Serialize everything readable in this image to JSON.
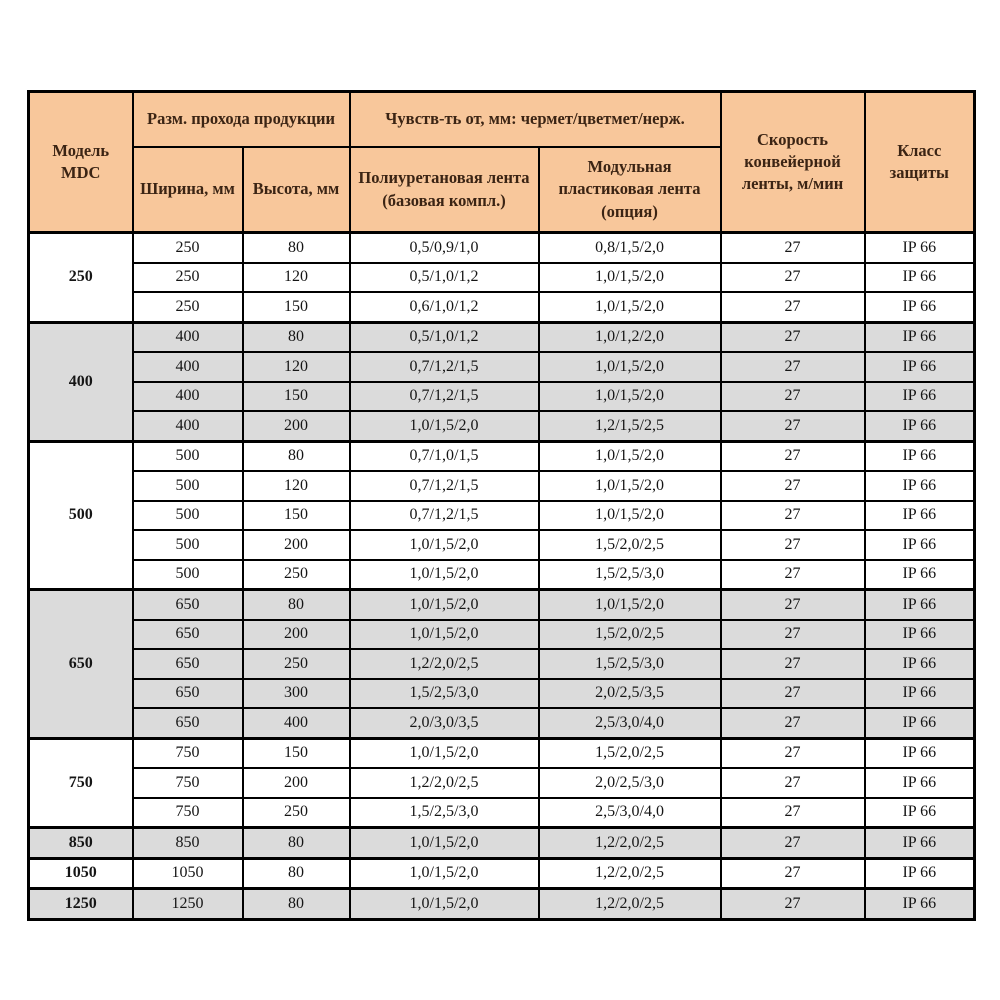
{
  "header": {
    "model": "Модель MDC",
    "pass_size": "Разм. прохода продукции",
    "width_col": "Ширина, мм",
    "height_col": "Высота, мм",
    "sensitivity": "Чувств-ть от, мм: чермет/цветмет/нерж.",
    "belt_pu": "Полиуретановая лента (базовая компл.)",
    "belt_modular": "Модульная пластиковая лента (опция)",
    "speed": "Скорость конвейерной ленты, м/мин",
    "protection": "Класс защиты"
  },
  "colors": {
    "header_bg": "#f8c79b",
    "header_text": "#3b2414",
    "row_gray": "#dbdbdb",
    "row_white": "#ffffff",
    "border": "#000000"
  },
  "groups": [
    {
      "model": "250",
      "shade": "white",
      "rows": [
        {
          "width": "250",
          "height": "80",
          "pu": "0,5/0,9/1,0",
          "modular": "0,8/1,5/2,0",
          "speed": "27",
          "protection": "IP 66"
        },
        {
          "width": "250",
          "height": "120",
          "pu": "0,5/1,0/1,2",
          "modular": "1,0/1,5/2,0",
          "speed": "27",
          "protection": "IP 66"
        },
        {
          "width": "250",
          "height": "150",
          "pu": "0,6/1,0/1,2",
          "modular": "1,0/1,5/2,0",
          "speed": "27",
          "protection": "IP 66"
        }
      ]
    },
    {
      "model": "400",
      "shade": "gray",
      "rows": [
        {
          "width": "400",
          "height": "80",
          "pu": "0,5/1,0/1,2",
          "modular": "1,0/1,2/2,0",
          "speed": "27",
          "protection": "IP 66"
        },
        {
          "width": "400",
          "height": "120",
          "pu": "0,7/1,2/1,5",
          "modular": "1,0/1,5/2,0",
          "speed": "27",
          "protection": "IP 66"
        },
        {
          "width": "400",
          "height": "150",
          "pu": "0,7/1,2/1,5",
          "modular": "1,0/1,5/2,0",
          "speed": "27",
          "protection": "IP 66"
        },
        {
          "width": "400",
          "height": "200",
          "pu": "1,0/1,5/2,0",
          "modular": "1,2/1,5/2,5",
          "speed": "27",
          "protection": "IP 66"
        }
      ]
    },
    {
      "model": "500",
      "shade": "white",
      "rows": [
        {
          "width": "500",
          "height": "80",
          "pu": "0,7/1,0/1,5",
          "modular": "1,0/1,5/2,0",
          "speed": "27",
          "protection": "IP 66"
        },
        {
          "width": "500",
          "height": "120",
          "pu": "0,7/1,2/1,5",
          "modular": "1,0/1,5/2,0",
          "speed": "27",
          "protection": "IP 66"
        },
        {
          "width": "500",
          "height": "150",
          "pu": "0,7/1,2/1,5",
          "modular": "1,0/1,5/2,0",
          "speed": "27",
          "protection": "IP 66"
        },
        {
          "width": "500",
          "height": "200",
          "pu": "1,0/1,5/2,0",
          "modular": "1,5/2,0/2,5",
          "speed": "27",
          "protection": "IP 66"
        },
        {
          "width": "500",
          "height": "250",
          "pu": "1,0/1,5/2,0",
          "modular": "1,5/2,5/3,0",
          "speed": "27",
          "protection": "IP 66"
        }
      ]
    },
    {
      "model": "650",
      "shade": "gray",
      "rows": [
        {
          "width": "650",
          "height": "80",
          "pu": "1,0/1,5/2,0",
          "modular": "1,0/1,5/2,0",
          "speed": "27",
          "protection": "IP 66"
        },
        {
          "width": "650",
          "height": "200",
          "pu": "1,0/1,5/2,0",
          "modular": "1,5/2,0/2,5",
          "speed": "27",
          "protection": "IP 66"
        },
        {
          "width": "650",
          "height": "250",
          "pu": "1,2/2,0/2,5",
          "modular": "1,5/2,5/3,0",
          "speed": "27",
          "protection": "IP 66"
        },
        {
          "width": "650",
          "height": "300",
          "pu": "1,5/2,5/3,0",
          "modular": "2,0/2,5/3,5",
          "speed": "27",
          "protection": "IP 66"
        },
        {
          "width": "650",
          "height": "400",
          "pu": "2,0/3,0/3,5",
          "modular": "2,5/3,0/4,0",
          "speed": "27",
          "protection": "IP 66"
        }
      ]
    },
    {
      "model": "750",
      "shade": "white",
      "rows": [
        {
          "width": "750",
          "height": "150",
          "pu": "1,0/1,5/2,0",
          "modular": "1,5/2,0/2,5",
          "speed": "27",
          "protection": "IP 66"
        },
        {
          "width": "750",
          "height": "200",
          "pu": "1,2/2,0/2,5",
          "modular": "2,0/2,5/3,0",
          "speed": "27",
          "protection": "IP 66"
        },
        {
          "width": "750",
          "height": "250",
          "pu": "1,5/2,5/3,0",
          "modular": "2,5/3,0/4,0",
          "speed": "27",
          "protection": "IP 66"
        }
      ]
    },
    {
      "model": "850",
      "shade": "gray",
      "rows": [
        {
          "width": "850",
          "height": "80",
          "pu": "1,0/1,5/2,0",
          "modular": "1,2/2,0/2,5",
          "speed": "27",
          "protection": "IP 66"
        }
      ]
    },
    {
      "model": "1050",
      "shade": "white",
      "rows": [
        {
          "width": "1050",
          "height": "80",
          "pu": "1,0/1,5/2,0",
          "modular": "1,2/2,0/2,5",
          "speed": "27",
          "protection": "IP 66"
        }
      ]
    },
    {
      "model": "1250",
      "shade": "gray",
      "rows": [
        {
          "width": "1250",
          "height": "80",
          "pu": "1,0/1,5/2,0",
          "modular": "1,2/2,0/2,5",
          "speed": "27",
          "protection": "IP 66"
        }
      ]
    }
  ]
}
